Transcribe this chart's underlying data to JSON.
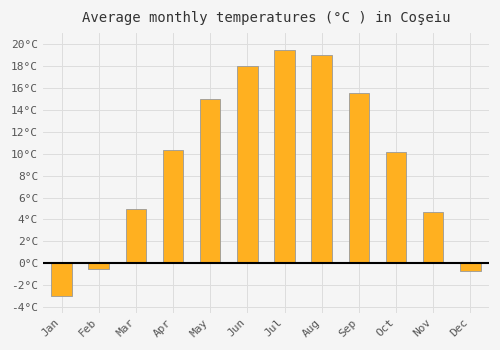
{
  "title": "Average monthly temperatures (°C ) in Coşeiu",
  "months": [
    "Jan",
    "Feb",
    "Mar",
    "Apr",
    "May",
    "Jun",
    "Jul",
    "Aug",
    "Sep",
    "Oct",
    "Nov",
    "Dec"
  ],
  "values": [
    -3.0,
    -0.5,
    5.0,
    10.3,
    15.0,
    18.0,
    19.5,
    19.0,
    15.5,
    10.2,
    4.7,
    -0.7
  ],
  "bar_color_top": "#FFBB33",
  "bar_color_bottom": "#FF9900",
  "bar_edge_color": "#999999",
  "background_color": "#f5f5f5",
  "plot_bg_color": "#f5f5f5",
  "grid_color": "#dddddd",
  "ylim": [
    -4.5,
    21.0
  ],
  "yticks": [
    -4,
    -2,
    0,
    2,
    4,
    6,
    8,
    10,
    12,
    14,
    16,
    18,
    20
  ],
  "title_fontsize": 10,
  "tick_fontsize": 8,
  "bar_width": 0.55
}
